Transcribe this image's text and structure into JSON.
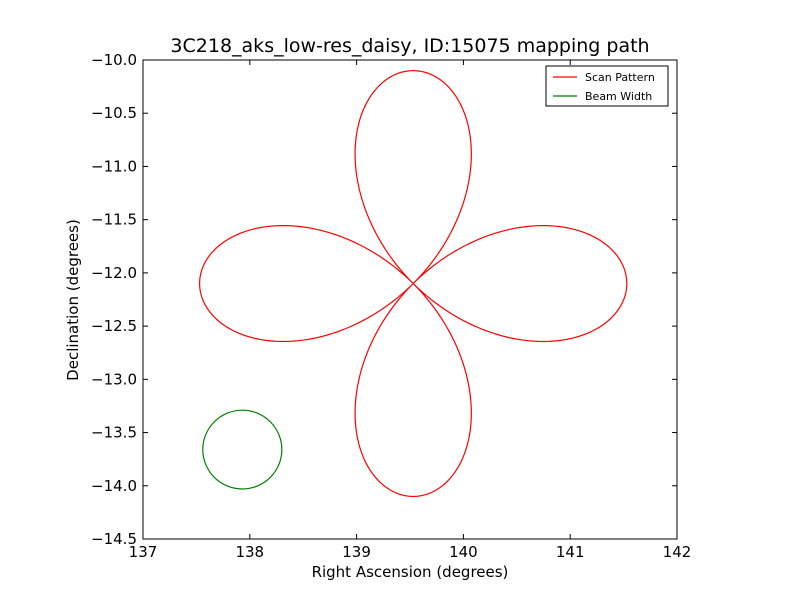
{
  "chart_data": {
    "type": "line",
    "title": "3C218_aks_low-res_daisy, ID:15075 mapping path",
    "xlabel": "Right Ascension (degrees)",
    "ylabel": "Declination (degrees)",
    "xlim": [
      137,
      142
    ],
    "ylim": [
      -14.5,
      -10.0
    ],
    "xticks": [
      137,
      138,
      139,
      140,
      141,
      142
    ],
    "xtick_labels": [
      "137",
      "138",
      "139",
      "140",
      "141",
      "142"
    ],
    "yticks": [
      -10.0,
      -10.5,
      -11.0,
      -11.5,
      -12.0,
      -12.5,
      -13.0,
      -13.5,
      -14.0,
      -14.5
    ],
    "ytick_labels": [
      "−10.0",
      "−10.5",
      "−11.0",
      "−11.5",
      "−12.0",
      "−12.5",
      "−13.0",
      "−13.5",
      "−14.0",
      "−14.5"
    ],
    "grid": false,
    "legend_position": "top-right",
    "series": [
      {
        "name": "Scan Pattern",
        "color": "#ff0000",
        "pattern": "daisy",
        "center": [
          139.53,
          -12.1
        ],
        "radius": 2.0,
        "petals": 4
      },
      {
        "name": "Beam Width",
        "color": "#008000",
        "shape": "circle",
        "center": [
          137.93,
          -13.66
        ],
        "radius": 0.37
      }
    ]
  }
}
